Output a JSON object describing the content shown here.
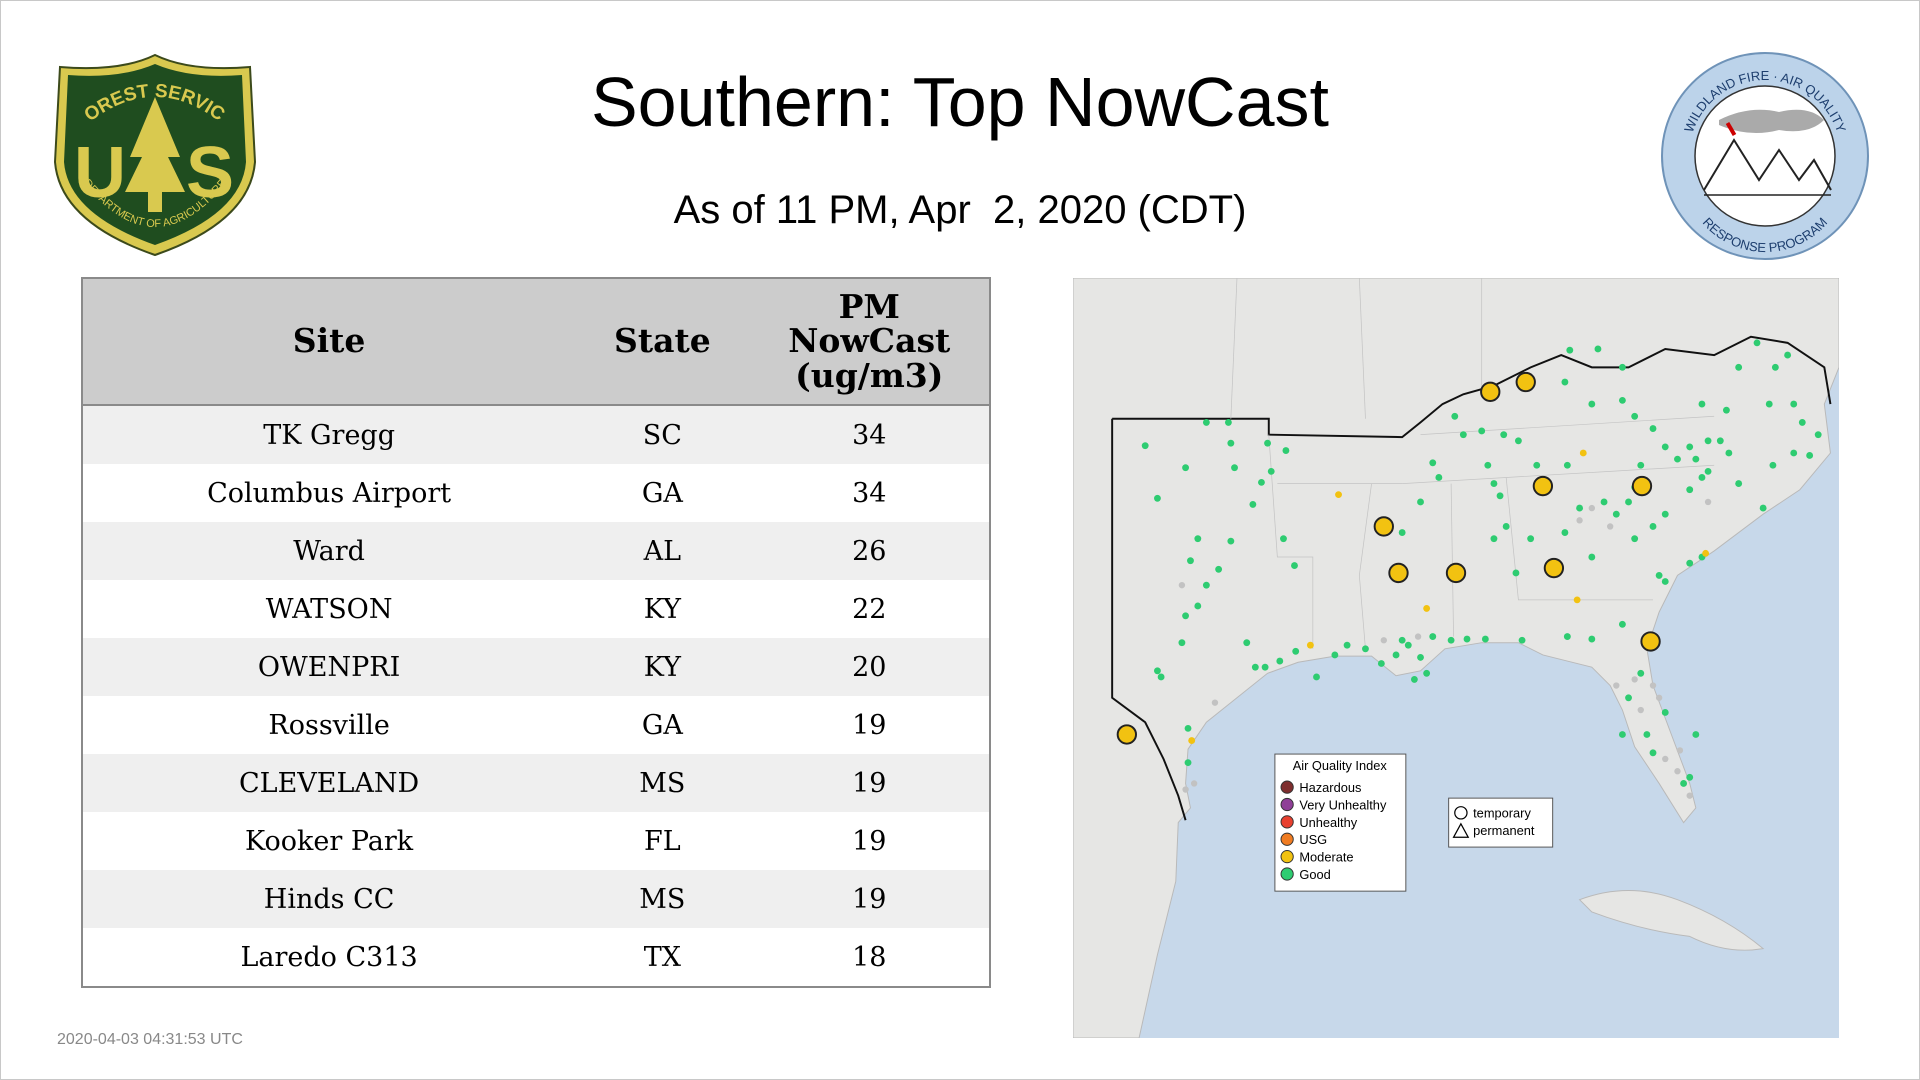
{
  "header": {
    "title": "Southern: Top NowCast",
    "subtitle": "As of 11 PM, Apr  2, 2020 (CDT)"
  },
  "logos": {
    "forest_service": {
      "top": "FOREST SERVICE",
      "left_letter": "U",
      "right_letter": "S",
      "bottom": "DEPARTMENT OF AGRICULTURE"
    },
    "wildland": {
      "top": "WILDLAND FIRE · AIR QUALITY",
      "bottom": "RESPONSE PROGRAM"
    }
  },
  "table": {
    "columns": [
      "Site",
      "State",
      "PM NowCast (ug/m3)"
    ],
    "rows": [
      [
        "TK Gregg",
        "SC",
        "34"
      ],
      [
        "Columbus Airport",
        "GA",
        "34"
      ],
      [
        "Ward",
        "AL",
        "26"
      ],
      [
        "WATSON",
        "KY",
        "22"
      ],
      [
        "OWENPRI",
        "KY",
        "20"
      ],
      [
        "Rossville",
        "GA",
        "19"
      ],
      [
        "CLEVELAND",
        "MS",
        "19"
      ],
      [
        "Kooker Park",
        "FL",
        "19"
      ],
      [
        "Hinds CC",
        "MS",
        "19"
      ],
      [
        "Laredo C313",
        "TX",
        "18"
      ]
    ]
  },
  "map": {
    "legend": {
      "title": "Air Quality Index",
      "items": [
        "Hazardous",
        "Very Unhealthy",
        "Unhealthy",
        "USG",
        "Moderate",
        "Good"
      ]
    },
    "shape_legend": {
      "items": [
        "temporary",
        "permanent"
      ]
    }
  },
  "footer": {
    "timestamp": "2020-04-03 04:31:53 UTC"
  }
}
